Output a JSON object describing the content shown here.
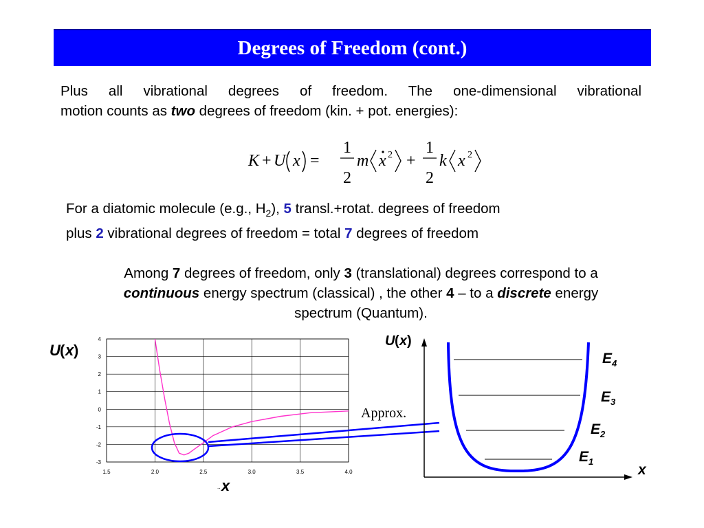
{
  "slide": {
    "title": "Degrees of Freedom (cont.)",
    "colors": {
      "title_bg": "#0000ff",
      "title_text": "#ffffff",
      "accent": "#1f1fb4",
      "curve": "#ff33cc",
      "oval": "#0000ff"
    }
  },
  "para1": {
    "line1": "Plus all vibrational degrees of freedom.  The one-dimensional vibrational",
    "line2_pre": "motion counts as ",
    "line2_em": "two",
    "line2_post": " degrees of freedom (kin. + pot. energies):"
  },
  "equation": {
    "lhs_K": "K",
    "plus1": "+",
    "lhs_U": "U",
    "lhs_x": "x",
    "equals": "=",
    "num1": "1",
    "den1": "2",
    "m": "m",
    "xdot": "x",
    "sq1": "2",
    "plus2": "+",
    "num2": "1",
    "den2": "2",
    "k": "k",
    "x2": "x",
    "sq2": "2"
  },
  "para2": {
    "line1_pre": "For a diatomic molecule (e.g., H",
    "line1_sub": "2",
    "line1_mid": "), ",
    "line1_num": "5",
    "line1_post": " transl.+rotat. degrees of freedom",
    "line2_pre": "plus ",
    "line2_num": "2",
    "line2_mid": " vibrational degrees of freedom = total ",
    "line2_num2": "7",
    "line2_post": " degrees of freedom"
  },
  "para3": {
    "s1": "Among ",
    "n1": "7",
    "s2": " degrees of freedom, only ",
    "n2": "3",
    "s3": " (translational) degrees correspond to a",
    "em1": "continuous",
    "s4": " energy spectrum (classical) , the other ",
    "n3": "4",
    "s5": " – to a ",
    "em2": "discrete",
    "s6": " energy",
    "s7": "spectrum (Quantum)."
  },
  "left_plot": {
    "ylabel_U": "U",
    "ylabel_x": "x",
    "xlabel": "x",
    "yticks": [
      "4",
      "3",
      "2",
      "1",
      "0",
      "-1",
      "-2",
      "-3"
    ],
    "xticks": [
      "1.5",
      "2.0",
      "2.5",
      "3.0",
      "3.5",
      "4.0"
    ]
  },
  "right_plot": {
    "ylabel_U": "U",
    "ylabel_x": "x",
    "xlabel": "x",
    "levels": [
      {
        "label": "E",
        "sub": "4"
      },
      {
        "label": "E",
        "sub": "3"
      },
      {
        "label": "E",
        "sub": "2"
      },
      {
        "label": "E",
        "sub": "1"
      }
    ]
  },
  "approx_label": "Approx.",
  "chart_data": {
    "type": "line",
    "title": "",
    "xlabel": "x",
    "ylabel": "U(x)",
    "xlim": [
      1.5,
      4.0
    ],
    "ylim": [
      -3,
      4
    ],
    "grid": true,
    "series": [
      {
        "x": [
          2.0,
          2.05,
          2.1,
          2.15,
          2.2,
          2.25,
          2.3,
          2.35,
          2.4,
          2.5,
          2.6,
          2.8,
          3.0,
          3.3,
          3.6,
          4.0
        ],
        "values": [
          4.0,
          2.2,
          0.6,
          -0.8,
          -1.9,
          -2.5,
          -2.6,
          -2.5,
          -2.3,
          -1.9,
          -1.5,
          -1.0,
          -0.7,
          -0.4,
          -0.2,
          -0.1
        ]
      }
    ]
  }
}
